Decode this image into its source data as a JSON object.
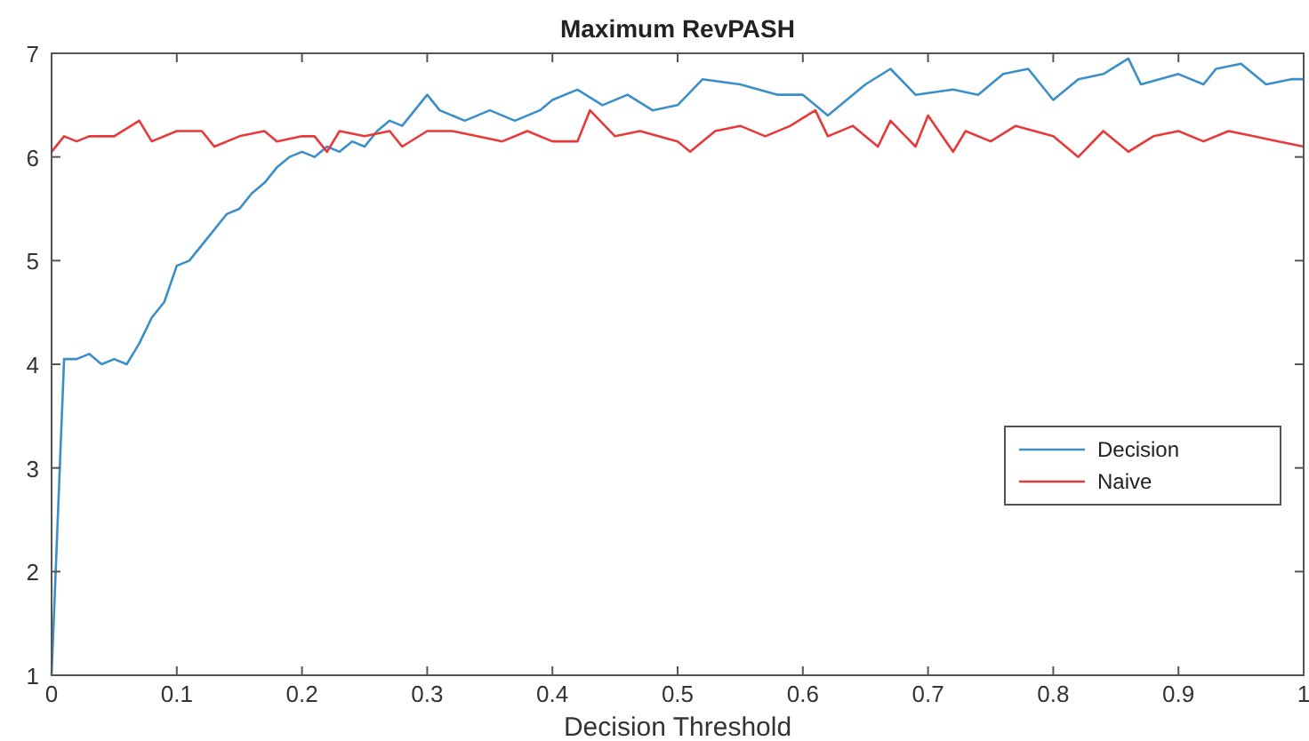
{
  "chart_data": {
    "type": "line",
    "title": "Maximum RevPASH",
    "xlabel": "Decision Threshold",
    "xlim": [
      0,
      1
    ],
    "ylim": [
      1,
      7
    ],
    "xticks": [
      0,
      0.1,
      0.2,
      0.3,
      0.4,
      0.5,
      0.6,
      0.7,
      0.8,
      0.9,
      1
    ],
    "yticks": [
      1,
      2,
      3,
      4,
      5,
      6,
      7
    ],
    "grid": false,
    "legend": "right",
    "marker": "none",
    "line_style": "solid",
    "series": [
      {
        "name": "Decision",
        "color": "#3a8fc8",
        "x": [
          0,
          0.01,
          0.02,
          0.03,
          0.04,
          0.05,
          0.06,
          0.07,
          0.08,
          0.09,
          0.1,
          0.11,
          0.12,
          0.13,
          0.14,
          0.15,
          0.16,
          0.17,
          0.18,
          0.19,
          0.2,
          0.21,
          0.22,
          0.23,
          0.24,
          0.25,
          0.26,
          0.27,
          0.28,
          0.3,
          0.31,
          0.33,
          0.35,
          0.37,
          0.39,
          0.4,
          0.42,
          0.44,
          0.46,
          0.48,
          0.5,
          0.52,
          0.55,
          0.58,
          0.6,
          0.62,
          0.65,
          0.67,
          0.69,
          0.72,
          0.74,
          0.76,
          0.78,
          0.8,
          0.82,
          0.84,
          0.86,
          0.87,
          0.9,
          0.92,
          0.93,
          0.95,
          0.97,
          0.99,
          1
        ],
        "values": [
          1.0,
          4.05,
          4.05,
          4.1,
          4.0,
          4.05,
          4.0,
          4.2,
          4.45,
          4.6,
          4.95,
          5.0,
          5.15,
          5.3,
          5.45,
          5.5,
          5.65,
          5.75,
          5.9,
          6.0,
          6.05,
          6.0,
          6.1,
          6.05,
          6.15,
          6.1,
          6.25,
          6.35,
          6.3,
          6.6,
          6.45,
          6.35,
          6.45,
          6.35,
          6.45,
          6.55,
          6.65,
          6.5,
          6.6,
          6.45,
          6.5,
          6.75,
          6.7,
          6.6,
          6.6,
          6.4,
          6.7,
          6.85,
          6.6,
          6.65,
          6.6,
          6.8,
          6.85,
          6.55,
          6.75,
          6.8,
          6.95,
          6.7,
          6.8,
          6.7,
          6.85,
          6.9,
          6.7,
          6.75,
          6.75
        ]
      },
      {
        "name": "Naive",
        "color": "#e8393a",
        "x": [
          0,
          0.01,
          0.02,
          0.03,
          0.05,
          0.07,
          0.08,
          0.1,
          0.12,
          0.13,
          0.15,
          0.17,
          0.18,
          0.2,
          0.21,
          0.22,
          0.23,
          0.25,
          0.27,
          0.28,
          0.3,
          0.32,
          0.34,
          0.36,
          0.38,
          0.4,
          0.42,
          0.43,
          0.45,
          0.47,
          0.5,
          0.51,
          0.53,
          0.55,
          0.57,
          0.59,
          0.61,
          0.62,
          0.64,
          0.66,
          0.67,
          0.69,
          0.7,
          0.72,
          0.73,
          0.75,
          0.77,
          0.8,
          0.82,
          0.84,
          0.86,
          0.88,
          0.9,
          0.92,
          0.94,
          0.96,
          0.98,
          1
        ],
        "values": [
          6.05,
          6.2,
          6.15,
          6.2,
          6.2,
          6.35,
          6.15,
          6.25,
          6.25,
          6.1,
          6.2,
          6.25,
          6.15,
          6.2,
          6.2,
          6.05,
          6.25,
          6.2,
          6.25,
          6.1,
          6.25,
          6.25,
          6.2,
          6.15,
          6.25,
          6.15,
          6.15,
          6.45,
          6.2,
          6.25,
          6.15,
          6.05,
          6.25,
          6.3,
          6.2,
          6.3,
          6.45,
          6.2,
          6.3,
          6.1,
          6.35,
          6.1,
          6.4,
          6.05,
          6.25,
          6.15,
          6.3,
          6.2,
          6.0,
          6.25,
          6.05,
          6.2,
          6.25,
          6.15,
          6.25,
          6.2,
          6.15,
          6.1
        ]
      }
    ]
  }
}
